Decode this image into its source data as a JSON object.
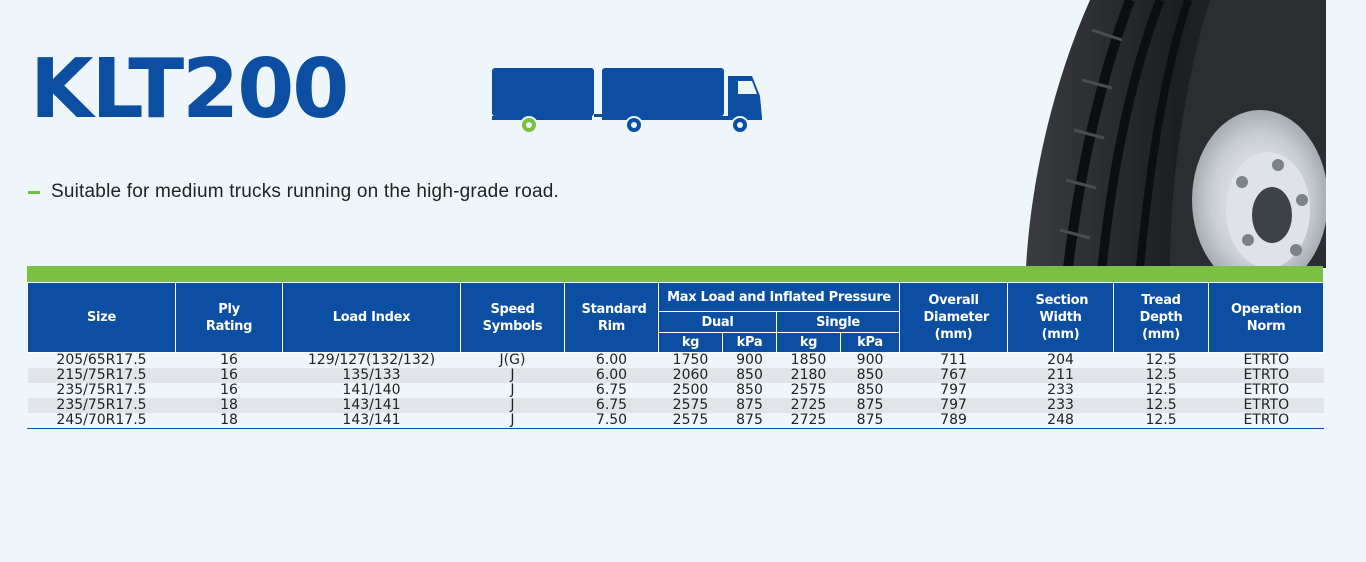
{
  "product": {
    "model": "KLT200",
    "feature": "Suitable for medium trucks running on the high-grade road.",
    "icons": [
      "truck-trailer-icon",
      "tire-image"
    ]
  },
  "colors": {
    "brand_blue": "#0b4ea2",
    "accent_green": "#7bc043",
    "background": "#eef6fb"
  },
  "table": {
    "headers": {
      "size": "Size",
      "ply_rating": "Ply Rating",
      "load_index": "Load Index",
      "speed_symbols": "Speed Symbols",
      "standard_rim": "Standard Rim",
      "max_load": "Max Load and Inflated Pressure",
      "dual": "Dual",
      "single": "Single",
      "kg": "kg",
      "kpa": "kPa",
      "overall_diameter": "Overall Diameter (mm)",
      "section_width": "Section Width (mm)",
      "tread_depth": "Tread Depth (mm)",
      "operation_norm": "Operation Norm"
    },
    "rows": [
      [
        "205/65R17.5",
        "16",
        "129/127(132/132)",
        "J(G)",
        "6.00",
        "1750",
        "900",
        "1850",
        "900",
        "711",
        "204",
        "12.5",
        "ETRTO"
      ],
      [
        "215/75R17.5",
        "16",
        "135/133",
        "J",
        "6.00",
        "2060",
        "850",
        "2180",
        "850",
        "767",
        "211",
        "12.5",
        "ETRTO"
      ],
      [
        "235/75R17.5",
        "16",
        "141/140",
        "J",
        "6.75",
        "2500",
        "850",
        "2575",
        "850",
        "797",
        "233",
        "12.5",
        "ETRTO"
      ],
      [
        "235/75R17.5",
        "18",
        "143/141",
        "J",
        "6.75",
        "2575",
        "875",
        "2725",
        "875",
        "797",
        "233",
        "12.5",
        "ETRTO"
      ],
      [
        "245/70R17.5",
        "18",
        "143/141",
        "J",
        "7.50",
        "2575",
        "875",
        "2725",
        "875",
        "789",
        "248",
        "12.5",
        "ETRTO"
      ]
    ]
  }
}
